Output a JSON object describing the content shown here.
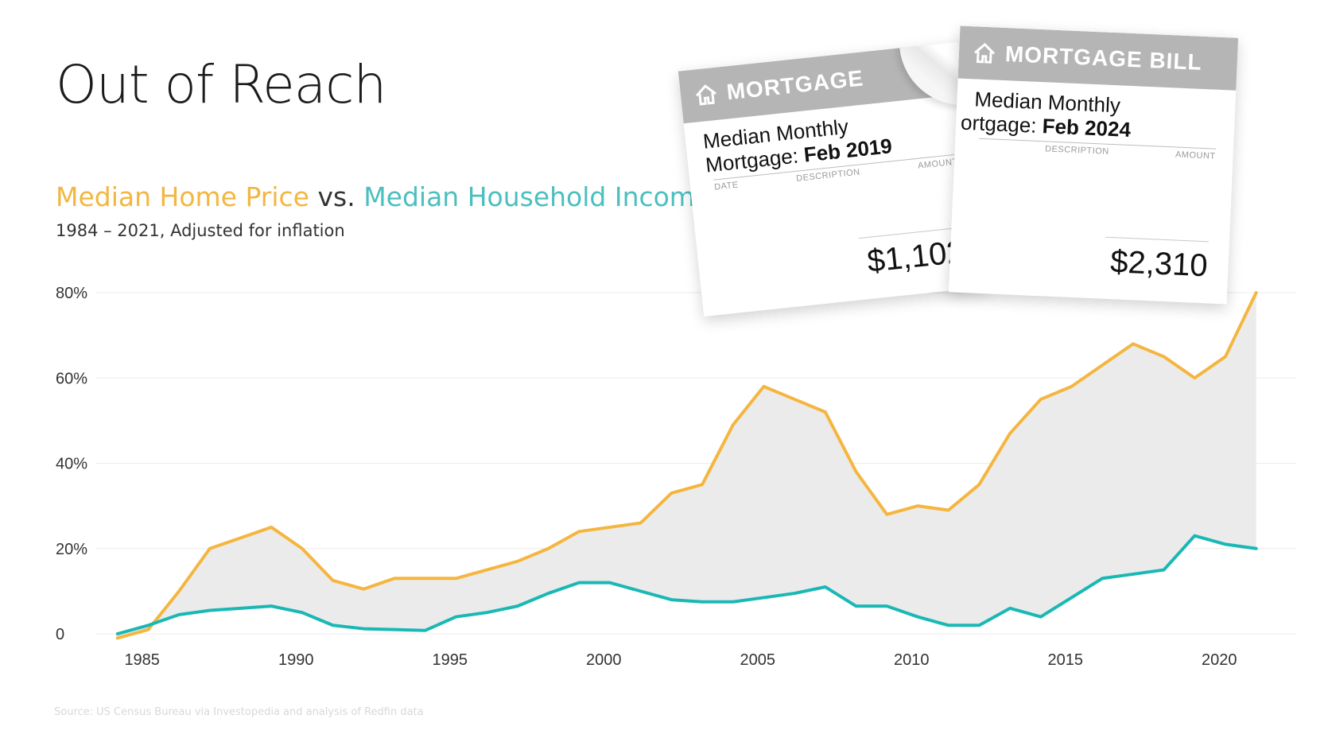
{
  "title": "Out of Reach",
  "subtitle": {
    "price_label": "Median Home Price",
    "vs_label": "vs.",
    "income_label": "Median Household Income",
    "range_note": "1984 – 2021, Adjusted for inflation"
  },
  "source": "Source: US Census Bureau via Investopedia  and analysis of Redfin data",
  "bills": [
    {
      "header": "MORTGAGE",
      "line1": "Median Monthly",
      "line2_prefix": "Mortgage:",
      "line2_date": "Feb 2019",
      "col_date": "DATE",
      "col_desc": "DESCRIPTION",
      "col_amount": "AMOUNT",
      "amount": "$1,102"
    },
    {
      "header": "MORTGAGE BILL",
      "line1": "Median Monthly",
      "line2_prefix": "ortgage:",
      "line2_date": "Feb 2024",
      "col_date": "",
      "col_desc": "DESCRIPTION",
      "col_amount": "AMOUNT",
      "amount": "$2,310"
    }
  ],
  "colors": {
    "price": "#f4b63f",
    "income": "#19b8b5",
    "gap_fill": "#ecebec",
    "grid": "#ececec"
  },
  "chart_data": {
    "type": "line",
    "xlim": [
      1984,
      2022.5
    ],
    "ylim": [
      0,
      80
    ],
    "x_ticks": [
      1985,
      1990,
      1995,
      2000,
      2005,
      2010,
      2015,
      2020
    ],
    "y_ticks": [
      {
        "value": 0,
        "label": "0"
      },
      {
        "value": 20,
        "label": "20%"
      },
      {
        "value": 40,
        "label": "40%"
      },
      {
        "value": 60,
        "label": "60%"
      },
      {
        "value": 80,
        "label": "80%"
      }
    ],
    "shaded_between_series": true,
    "series": [
      {
        "name": "Median Home Price",
        "x": [
          1984.2,
          1985.2,
          1986.2,
          1987.2,
          1988.2,
          1989.2,
          1990.2,
          1991.2,
          1992.2,
          1993.2,
          1994.2,
          1995.2,
          1996.2,
          1997.2,
          1998.2,
          1999.2,
          2000.2,
          2001.2,
          2002.2,
          2003.2,
          2004.2,
          2005.2,
          2006.2,
          2007.2,
          2008.2,
          2009.2,
          2010.2,
          2011.2,
          2012.2,
          2013.2,
          2014.2,
          2015.2,
          2016.2,
          2017.2,
          2018.2,
          2019.2,
          2020.2,
          2021.2
        ],
        "values": [
          -1,
          1,
          10,
          20,
          22.5,
          25,
          20,
          12.5,
          10.5,
          13,
          13,
          13,
          15,
          17,
          20,
          24,
          25,
          26,
          33,
          35,
          49,
          58,
          55,
          52,
          38,
          28,
          30,
          29,
          35,
          47,
          55,
          58,
          63,
          68,
          65,
          60,
          65,
          80
        ]
      },
      {
        "name": "Median Household Income",
        "x": [
          1984.2,
          1985.2,
          1986.2,
          1987.2,
          1988.2,
          1989.2,
          1990.2,
          1991.2,
          1992.2,
          1993.2,
          1994.2,
          1995.2,
          1996.2,
          1997.2,
          1998.2,
          1999.2,
          2000.2,
          2001.2,
          2002.2,
          2003.2,
          2004.2,
          2005.2,
          2006.2,
          2007.2,
          2008.2,
          2009.2,
          2010.2,
          2011.2,
          2012.2,
          2013.2,
          2014.2,
          2015.2,
          2016.2,
          2017.2,
          2018.2,
          2019.2,
          2020.2,
          2021.2
        ],
        "values": [
          0,
          2,
          4.5,
          5.5,
          6,
          6.5,
          5,
          2,
          1.2,
          1,
          0.8,
          4,
          5,
          6.5,
          9.5,
          12,
          12,
          10,
          8,
          7.5,
          7.5,
          8.5,
          9.5,
          11,
          6.5,
          6.5,
          4,
          2,
          2,
          6,
          4,
          8.5,
          13,
          14,
          15,
          23,
          21,
          20
        ]
      }
    ]
  }
}
